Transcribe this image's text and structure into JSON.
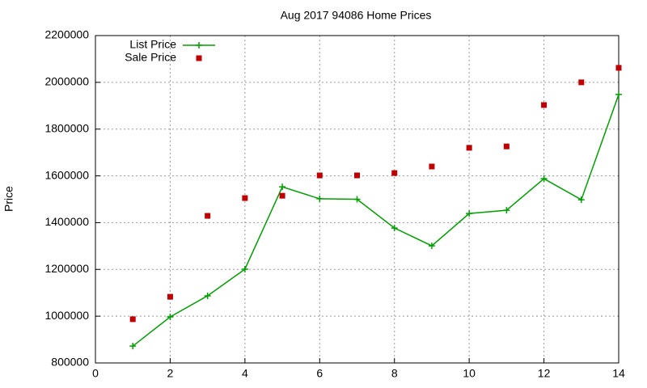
{
  "chart_data": {
    "type": "line",
    "title": "Aug 2017 94086 Home Prices",
    "y_label": "Price",
    "x": [
      1,
      2,
      3,
      4,
      5,
      6,
      7,
      8,
      9,
      10,
      11,
      12,
      13,
      14
    ],
    "series": [
      {
        "name": "List Price",
        "color": "#00a000",
        "style": "linespoints",
        "values": [
          872000,
          997000,
          1087000,
          1201000,
          1553000,
          1502000,
          1500000,
          1377000,
          1301000,
          1439000,
          1453000,
          1588000,
          1498000,
          1948000
        ]
      },
      {
        "name": "Sale Price",
        "color": "#c00000",
        "style": "points",
        "values": [
          987000,
          1083000,
          1429000,
          1505000,
          1515000,
          1602000,
          1602000,
          1612000,
          1640000,
          1720000,
          1726000,
          1903000,
          2000000,
          2062000
        ]
      }
    ],
    "xlim": [
      0,
      14
    ],
    "xticks": [
      0,
      2,
      4,
      6,
      8,
      10,
      12,
      14
    ],
    "ylim": [
      800000,
      2200000
    ],
    "yticks": [
      800000,
      1000000,
      1200000,
      1400000,
      1600000,
      1800000,
      2000000,
      2200000
    ],
    "grid": true,
    "legend": "top-left"
  }
}
